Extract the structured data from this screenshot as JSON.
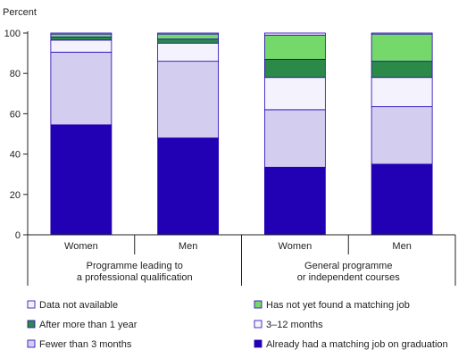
{
  "chart_data": {
    "type": "bar",
    "stacked": true,
    "ylabel": "Percent",
    "ylim": [
      0,
      100
    ],
    "yticks": [
      0,
      20,
      40,
      60,
      80,
      100
    ],
    "grid": false,
    "legend_position": "bottom",
    "categories": [
      "Women",
      "Men",
      "Women",
      "Men"
    ],
    "groups": [
      {
        "label_line1": "Programme leading to",
        "label_line2": "a professional qualification",
        "categories": [
          0,
          1
        ]
      },
      {
        "label_line1": "General programme",
        "label_line2": "or independent courses",
        "categories": [
          2,
          3
        ]
      }
    ],
    "series": [
      {
        "name": "Already had a matching job on graduation",
        "color": "#2200b4",
        "values": [
          54.5,
          48,
          33.5,
          35
        ]
      },
      {
        "name": "Fewer than 3 months",
        "color": "#d3cdf0",
        "values": [
          36,
          38,
          28.5,
          28.5
        ]
      },
      {
        "name": "3–12 months",
        "color": "#f4f2fd",
        "values": [
          6,
          9,
          16,
          14.5
        ]
      },
      {
        "name": "After more than 1 year",
        "color": "#2b8a48",
        "values": [
          1.5,
          2,
          9,
          8
        ]
      },
      {
        "name": "Has not yet found a matching job",
        "color": "#74d96a",
        "values": [
          1.5,
          2.5,
          12,
          13.5
        ]
      },
      {
        "name": "Data not available",
        "color": "#f3f2fb",
        "values": [
          0.5,
          0.5,
          1,
          0.5
        ]
      }
    ],
    "legend_order": [
      5,
      4,
      3,
      2,
      1,
      0
    ]
  }
}
